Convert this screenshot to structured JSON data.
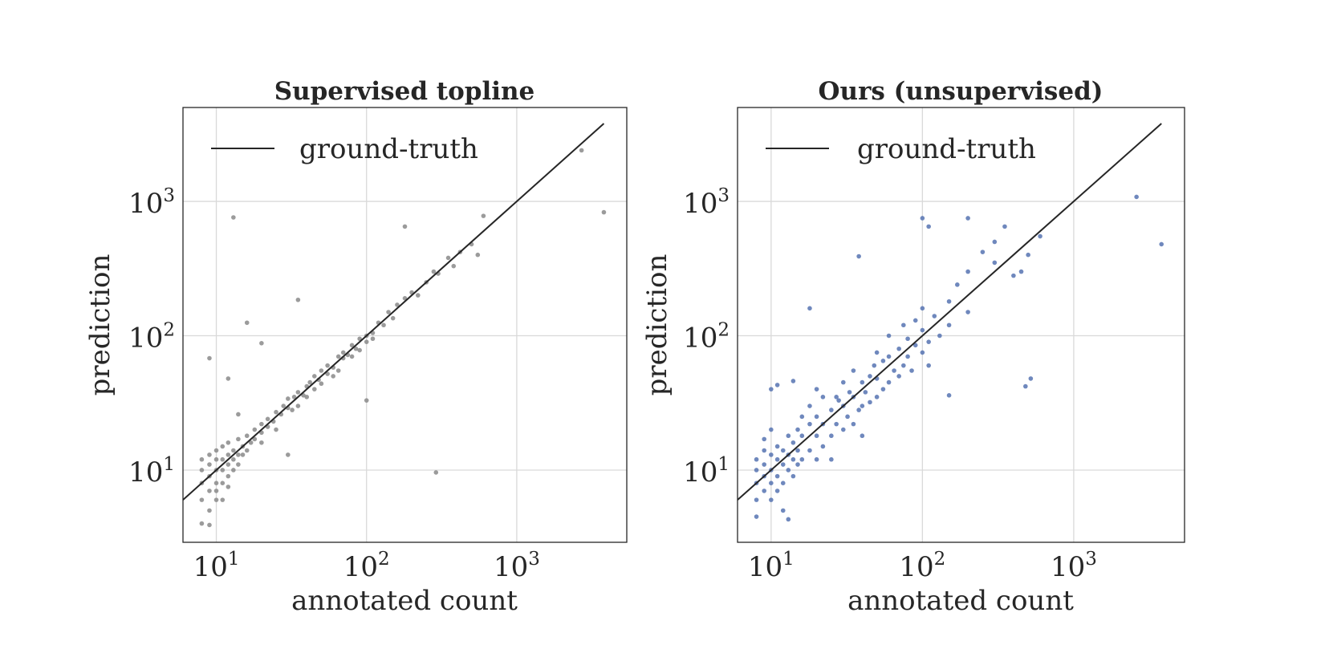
{
  "chart_data": [
    {
      "type": "scatter",
      "title": "Supervised topline",
      "xlabel": "annotated count",
      "ylabel": "prediction",
      "xscale": "log",
      "yscale": "log",
      "xlim": [
        6,
        5400
      ],
      "ylim": [
        2.9,
        5000
      ],
      "xticks": [
        {
          "base": "10",
          "exp": "1"
        },
        {
          "base": "10",
          "exp": "2"
        },
        {
          "base": "10",
          "exp": "3"
        }
      ],
      "yticks": [
        {
          "base": "10",
          "exp": "1"
        },
        {
          "base": "10",
          "exp": "2"
        },
        {
          "base": "10",
          "exp": "3"
        }
      ],
      "grid": true,
      "legend": {
        "position": "top-left",
        "entries": [
          "ground-truth"
        ]
      },
      "reference_line": {
        "name": "ground-truth",
        "y_equals_x": true,
        "color": "#262626"
      },
      "point_color": "#8a8a8a",
      "points": [
        [
          8,
          6
        ],
        [
          8,
          8
        ],
        [
          8,
          10
        ],
        [
          8,
          12
        ],
        [
          8,
          4
        ],
        [
          9,
          5
        ],
        [
          9,
          7
        ],
        [
          9,
          9
        ],
        [
          9,
          11
        ],
        [
          9,
          13
        ],
        [
          9,
          3.9
        ],
        [
          10,
          6
        ],
        [
          10,
          8
        ],
        [
          10,
          10
        ],
        [
          10,
          12
        ],
        [
          10,
          14
        ],
        [
          10,
          7
        ],
        [
          11,
          8
        ],
        [
          11,
          10
        ],
        [
          11,
          12
        ],
        [
          11,
          15
        ],
        [
          11,
          6
        ],
        [
          12,
          9
        ],
        [
          12,
          11
        ],
        [
          12,
          13
        ],
        [
          12,
          16
        ],
        [
          12,
          7.5
        ],
        [
          13,
          10
        ],
        [
          13,
          12
        ],
        [
          13,
          14
        ],
        [
          14,
          11
        ],
        [
          14,
          13
        ],
        [
          14,
          17
        ],
        [
          15,
          13
        ],
        [
          15,
          15
        ],
        [
          16,
          14
        ],
        [
          16,
          18
        ],
        [
          17,
          16
        ],
        [
          18,
          17
        ],
        [
          18,
          20
        ],
        [
          20,
          19
        ],
        [
          20,
          22
        ],
        [
          20,
          16
        ],
        [
          22,
          21
        ],
        [
          22,
          24
        ],
        [
          24,
          23
        ],
        [
          25,
          27
        ],
        [
          25,
          20
        ],
        [
          27,
          26
        ],
        [
          28,
          30
        ],
        [
          30,
          29
        ],
        [
          30,
          34
        ],
        [
          32,
          28
        ],
        [
          33,
          35
        ],
        [
          35,
          38
        ],
        [
          35,
          30
        ],
        [
          38,
          36
        ],
        [
          40,
          42
        ],
        [
          40,
          35
        ],
        [
          42,
          45
        ],
        [
          45,
          40
        ],
        [
          45,
          50
        ],
        [
          48,
          47
        ],
        [
          50,
          55
        ],
        [
          50,
          44
        ],
        [
          55,
          52
        ],
        [
          55,
          60
        ],
        [
          60,
          58
        ],
        [
          60,
          50
        ],
        [
          65,
          70
        ],
        [
          65,
          55
        ],
        [
          70,
          68
        ],
        [
          70,
          75
        ],
        [
          75,
          72
        ],
        [
          80,
          85
        ],
        [
          80,
          70
        ],
        [
          85,
          80
        ],
        [
          90,
          95
        ],
        [
          90,
          78
        ],
        [
          100,
          100
        ],
        [
          100,
          90
        ],
        [
          110,
          105
        ],
        [
          110,
          95
        ],
        [
          120,
          125
        ],
        [
          130,
          120
        ],
        [
          140,
          150
        ],
        [
          150,
          135
        ],
        [
          160,
          170
        ],
        [
          180,
          190
        ],
        [
          200,
          210
        ],
        [
          220,
          200
        ],
        [
          250,
          250
        ],
        [
          280,
          300
        ],
        [
          300,
          290
        ],
        [
          350,
          380
        ],
        [
          380,
          330
        ],
        [
          420,
          420
        ],
        [
          500,
          480
        ],
        [
          550,
          400
        ],
        [
          600,
          780
        ],
        [
          180,
          650
        ],
        [
          13,
          760
        ],
        [
          9,
          68
        ],
        [
          16,
          125
        ],
        [
          20,
          88
        ],
        [
          35,
          185
        ],
        [
          30,
          13
        ],
        [
          290,
          9.6
        ],
        [
          3800,
          830
        ],
        [
          2700,
          2400
        ],
        [
          100,
          33
        ],
        [
          12,
          48
        ],
        [
          14,
          26
        ]
      ]
    },
    {
      "type": "scatter",
      "title": "Ours (unsupervised)",
      "xlabel": "annotated count",
      "ylabel": "prediction",
      "xscale": "log",
      "yscale": "log",
      "xlim": [
        6,
        5400
      ],
      "ylim": [
        2.9,
        5000
      ],
      "xticks": [
        {
          "base": "10",
          "exp": "1"
        },
        {
          "base": "10",
          "exp": "2"
        },
        {
          "base": "10",
          "exp": "3"
        }
      ],
      "yticks": [
        {
          "base": "10",
          "exp": "1"
        },
        {
          "base": "10",
          "exp": "2"
        },
        {
          "base": "10",
          "exp": "3"
        }
      ],
      "grid": true,
      "legend": {
        "position": "top-left",
        "entries": [
          "ground-truth"
        ]
      },
      "reference_line": {
        "name": "ground-truth",
        "y_equals_x": true,
        "color": "#262626"
      },
      "point_color": "#5673b2",
      "points": [
        [
          8,
          4.5
        ],
        [
          8,
          6
        ],
        [
          8,
          8
        ],
        [
          8,
          10
        ],
        [
          8,
          12
        ],
        [
          9,
          7
        ],
        [
          9,
          9
        ],
        [
          9,
          11
        ],
        [
          9,
          14
        ],
        [
          9,
          17
        ],
        [
          10,
          6
        ],
        [
          10,
          8
        ],
        [
          10,
          10
        ],
        [
          10,
          13
        ],
        [
          10,
          20
        ],
        [
          10,
          40
        ],
        [
          11,
          7
        ],
        [
          11,
          9
        ],
        [
          11,
          12
        ],
        [
          11,
          15
        ],
        [
          11,
          43
        ],
        [
          12,
          8
        ],
        [
          12,
          11
        ],
        [
          12,
          14
        ],
        [
          12,
          5
        ],
        [
          13,
          10
        ],
        [
          13,
          13
        ],
        [
          13,
          18
        ],
        [
          14,
          9
        ],
        [
          14,
          12
        ],
        [
          14,
          16
        ],
        [
          14,
          46
        ],
        [
          15,
          11
        ],
        [
          15,
          14
        ],
        [
          15,
          20
        ],
        [
          16,
          12
        ],
        [
          16,
          18
        ],
        [
          16,
          25
        ],
        [
          18,
          14
        ],
        [
          18,
          22
        ],
        [
          18,
          30
        ],
        [
          20,
          12
        ],
        [
          20,
          18
        ],
        [
          20,
          25
        ],
        [
          20,
          40
        ],
        [
          22,
          15
        ],
        [
          22,
          22
        ],
        [
          22,
          35
        ],
        [
          25,
          18
        ],
        [
          25,
          28
        ],
        [
          25,
          12
        ],
        [
          27,
          22
        ],
        [
          28,
          33
        ],
        [
          30,
          20
        ],
        [
          30,
          30
        ],
        [
          30,
          45
        ],
        [
          32,
          25
        ],
        [
          33,
          38
        ],
        [
          35,
          22
        ],
        [
          35,
          35
        ],
        [
          35,
          55
        ],
        [
          38,
          28
        ],
        [
          40,
          30
        ],
        [
          40,
          45
        ],
        [
          40,
          18
        ],
        [
          42,
          38
        ],
        [
          45,
          32
        ],
        [
          45,
          50
        ],
        [
          48,
          60
        ],
        [
          50,
          35
        ],
        [
          50,
          48
        ],
        [
          50,
          75
        ],
        [
          55,
          40
        ],
        [
          55,
          65
        ],
        [
          60,
          45
        ],
        [
          60,
          70
        ],
        [
          60,
          100
        ],
        [
          65,
          55
        ],
        [
          70,
          50
        ],
        [
          70,
          80
        ],
        [
          75,
          60
        ],
        [
          75,
          120
        ],
        [
          80,
          70
        ],
        [
          80,
          95
        ],
        [
          85,
          55
        ],
        [
          90,
          85
        ],
        [
          90,
          130
        ],
        [
          100,
          75
        ],
        [
          100,
          110
        ],
        [
          100,
          160
        ],
        [
          110,
          90
        ],
        [
          110,
          60
        ],
        [
          120,
          140
        ],
        [
          130,
          100
        ],
        [
          150,
          180
        ],
        [
          150,
          120
        ],
        [
          170,
          240
        ],
        [
          200,
          300
        ],
        [
          200,
          150
        ],
        [
          250,
          420
        ],
        [
          300,
          350
        ],
        [
          300,
          500
        ],
        [
          350,
          650
        ],
        [
          400,
          280
        ],
        [
          450,
          300
        ],
        [
          500,
          400
        ],
        [
          600,
          550
        ],
        [
          110,
          650
        ],
        [
          100,
          750
        ],
        [
          200,
          750
        ],
        [
          2600,
          1080
        ],
        [
          3800,
          480
        ],
        [
          38,
          390
        ],
        [
          520,
          48
        ],
        [
          480,
          42
        ],
        [
          18,
          160
        ],
        [
          150,
          36
        ],
        [
          13,
          4.3
        ],
        [
          27,
          35
        ]
      ]
    }
  ]
}
